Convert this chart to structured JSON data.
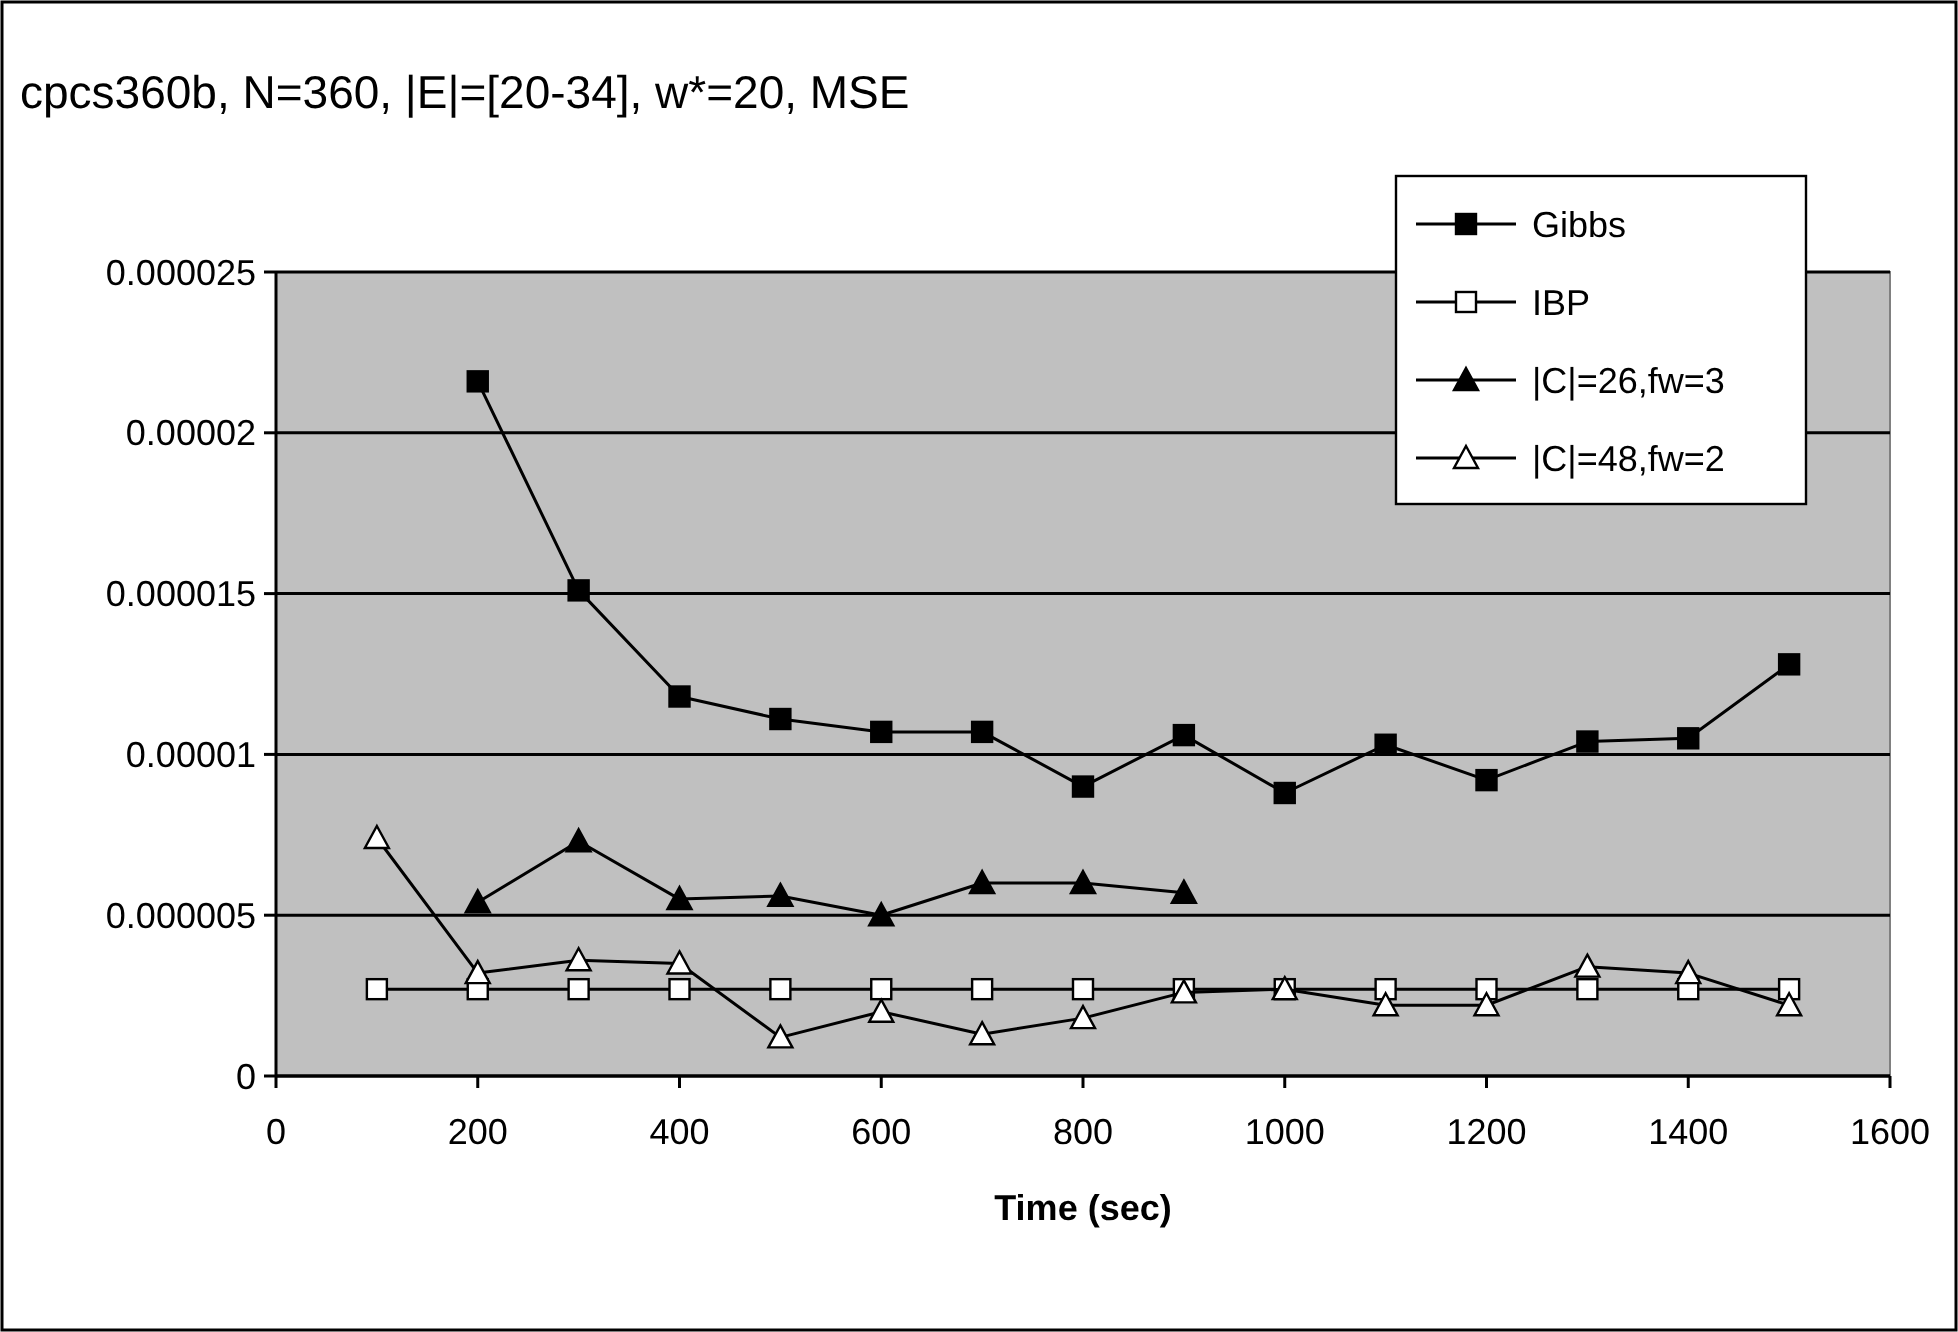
{
  "chart_data": {
    "type": "line",
    "title": "cpcs360b, N=360, |E|=[20-34], w*=20, MSE",
    "xlabel": "Time (sec)",
    "xlim": [
      0,
      1600
    ],
    "xticks": [
      0,
      200,
      400,
      600,
      800,
      1000,
      1200,
      1400,
      1600
    ],
    "ylim": [
      0,
      2.5e-05
    ],
    "yticks": [
      0,
      {
        "value": 5e-06,
        "label": "0.000005"
      },
      {
        "value": 1e-05,
        "label": "0.00001"
      },
      {
        "value": 1.5e-05,
        "label": "0.000015"
      },
      {
        "value": 2e-05,
        "label": "0.00002"
      },
      {
        "value": 2.5e-05,
        "label": "0.000025"
      }
    ],
    "grid": "y",
    "legend": "top right",
    "line_style": "solid",
    "series": [
      {
        "name": "Gibbs",
        "color": "#000000",
        "marker": "square",
        "x": [
          200,
          300,
          400,
          500,
          600,
          700,
          800,
          900,
          1000,
          1100,
          1200,
          1300,
          1400,
          1500
        ],
        "values": [
          2.16e-05,
          1.51e-05,
          1.18e-05,
          1.11e-05,
          1.07e-05,
          1.07e-05,
          9e-06,
          1.06e-05,
          8.8e-06,
          1.03e-05,
          9.2e-06,
          1.04e-05,
          1.05e-05,
          1.28e-05
        ]
      },
      {
        "name": "IBP",
        "color": "#ffffff",
        "marker": "square",
        "x": [
          100,
          200,
          300,
          400,
          500,
          600,
          700,
          800,
          900,
          1000,
          1100,
          1200,
          1300,
          1400,
          1500
        ],
        "values": [
          2.7e-06,
          2.7e-06,
          2.7e-06,
          2.7e-06,
          2.7e-06,
          2.7e-06,
          2.7e-06,
          2.7e-06,
          2.7e-06,
          2.7e-06,
          2.7e-06,
          2.7e-06,
          2.7e-06,
          2.7e-06,
          2.7e-06
        ]
      },
      {
        "name": "|C|=26,fw=3",
        "color": "#000000",
        "marker": "triangle",
        "x": [
          200,
          300,
          400,
          500,
          600,
          700,
          800,
          900
        ],
        "values": [
          5.4e-06,
          7.3e-06,
          5.5e-06,
          5.6e-06,
          5e-06,
          6e-06,
          6e-06,
          5.7e-06
        ]
      },
      {
        "name": "|C|=48,fw=2",
        "color": "#ffffff",
        "marker": "triangle",
        "x": [
          100,
          200,
          300,
          400,
          500,
          600,
          700,
          800,
          900,
          1000,
          1100,
          1200,
          1300,
          1400,
          1500
        ],
        "values": [
          7.4e-06,
          3.2e-06,
          3.6e-06,
          3.5e-06,
          1.2e-06,
          2e-06,
          1.3e-06,
          1.8e-06,
          2.6e-06,
          2.7e-06,
          2.2e-06,
          2.2e-06,
          3.4e-06,
          3.2e-06,
          2.2e-06
        ]
      }
    ]
  }
}
